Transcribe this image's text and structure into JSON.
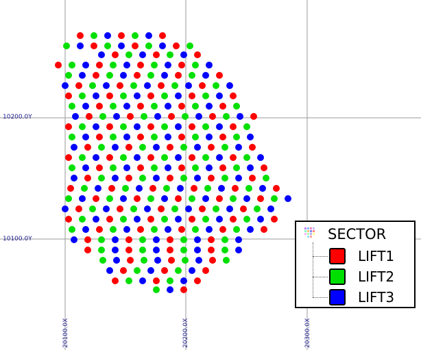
{
  "map": {
    "grid_labels": {
      "y": [
        "10200.0Y",
        "10100.0Y"
      ],
      "x": [
        "20100.0X",
        "20200.0X",
        "20300.0X"
      ]
    },
    "colors": {
      "grid": "#9a9a9a",
      "label": "#1a1a8c",
      "lift1": "#ff0000",
      "lift2": "#00e000",
      "lift3": "#0000ff"
    }
  },
  "legend": {
    "title": "SECTOR",
    "icon": "sector-grid-icon",
    "items": [
      {
        "label": "LIFT1",
        "color": "#ff0000"
      },
      {
        "label": "LIFT2",
        "color": "#00e000"
      },
      {
        "label": "LIFT3",
        "color": "#0000ff"
      }
    ]
  }
}
